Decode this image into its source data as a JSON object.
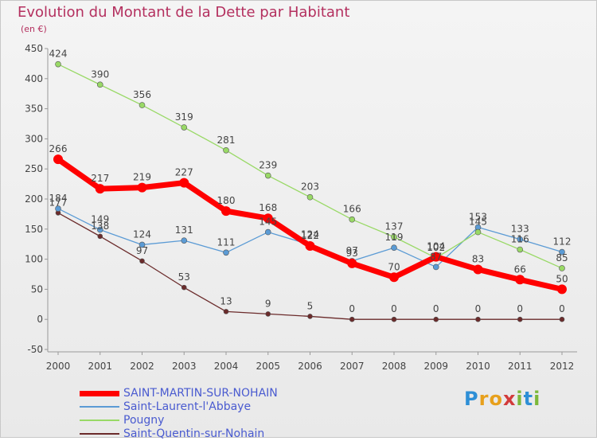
{
  "title": "Evolution du Montant de la Dette par Habitant",
  "subtitle": "(en €)",
  "logo": {
    "letters": [
      {
        "ch": "P",
        "color": "#2e8fd6"
      },
      {
        "ch": "r",
        "color": "#e7a01c"
      },
      {
        "ch": "o",
        "color": "#e7a01c"
      },
      {
        "ch": "x",
        "color": "#d23b3b"
      },
      {
        "ch": "i",
        "color": "#7cb83a"
      },
      {
        "ch": "t",
        "color": "#2e8fd6"
      },
      {
        "ch": "i",
        "color": "#7cb83a"
      }
    ]
  },
  "chart_data": {
    "type": "line",
    "x": [
      "2000",
      "2001",
      "2002",
      "2003",
      "2004",
      "2005",
      "2006",
      "2007",
      "2008",
      "2009",
      "2010",
      "2011",
      "2012"
    ],
    "ylim": [
      -50,
      450
    ],
    "yticks": [
      -50,
      0,
      50,
      100,
      150,
      200,
      250,
      300,
      350,
      400,
      450
    ],
    "grid": false,
    "legend": "bottom-left",
    "series": [
      {
        "name": "SAINT-MARTIN-SUR-NOHAIN",
        "color": "#ff0000",
        "values": [
          266,
          217,
          219,
          227,
          180,
          168,
          122,
          93,
          70,
          104,
          83,
          66,
          50
        ]
      },
      {
        "name": "Saint-Laurent-l'Abbaye",
        "color": "#5b9bd5",
        "values": [
          184,
          149,
          124,
          131,
          111,
          145,
          124,
          97,
          119,
          87,
          153,
          133,
          112
        ]
      },
      {
        "name": "Pougny",
        "color": "#99d966",
        "values": [
          424,
          390,
          356,
          319,
          281,
          239,
          203,
          166,
          137,
          102,
          145,
          116,
          85
        ]
      },
      {
        "name": "Saint-Quentin-sur-Nohain",
        "color": "#6b2b2b",
        "values": [
          177,
          138,
          97,
          53,
          13,
          9,
          5,
          0,
          0,
          0,
          0,
          0,
          0
        ]
      }
    ]
  }
}
